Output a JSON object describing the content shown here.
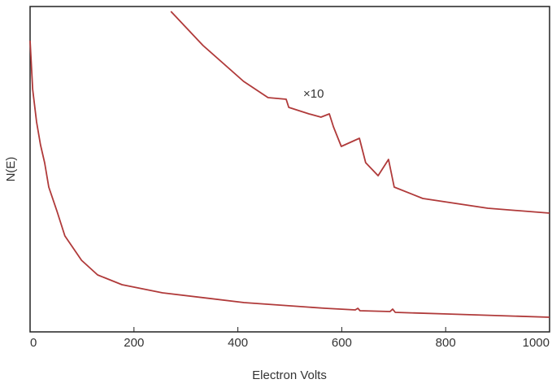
{
  "chart_data": {
    "type": "line",
    "xlabel": "Electron Volts",
    "ylabel": "N(E)",
    "annotation": "×10",
    "xlim": [
      0,
      1000
    ],
    "xticks": [
      0,
      200,
      400,
      600,
      800,
      1000
    ],
    "ylim": [
      0,
      100
    ],
    "series": [
      {
        "color": "#b03a3a",
        "x": [
          0,
          5,
          12.5,
          20,
          28,
          36,
          52,
          67,
          99,
          130,
          177,
          255,
          412,
          568,
          626,
          631,
          635,
          693,
          698,
          703,
          803,
          1000
        ],
        "values": [
          89.5,
          74.5,
          64.5,
          57.5,
          52,
          44.5,
          37,
          29.5,
          22,
          17.5,
          14.5,
          12,
          9,
          7.25,
          6.75,
          7.25,
          6.5,
          6.25,
          7,
          6,
          5.5,
          4.5
        ]
      },
      {
        "color": "#b03a3a",
        "x": [
          271,
          333,
          411,
          458,
          493,
          498,
          537,
          560,
          576,
          584,
          599,
          634,
          646,
          670,
          690,
          701,
          756,
          881,
          1000
        ],
        "values": [
          98.5,
          88,
          77,
          72,
          71.5,
          69,
          67,
          66,
          67,
          63,
          57,
          59.5,
          52,
          48,
          53,
          44.5,
          41,
          38,
          36.5
        ]
      }
    ]
  }
}
